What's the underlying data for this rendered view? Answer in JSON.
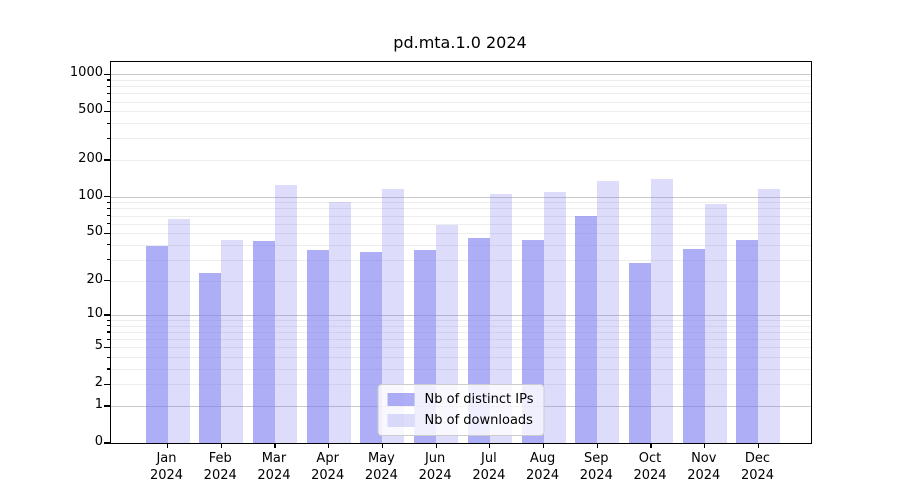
{
  "title": "pd.mta.1.0 2024",
  "chart_data": {
    "type": "bar",
    "title": "pd.mta.1.0 2024",
    "categories": [
      "Jan 2024",
      "Feb 2024",
      "Mar 2024",
      "Apr 2024",
      "May 2024",
      "Jun 2024",
      "Jul 2024",
      "Aug 2024",
      "Sep 2024",
      "Oct 2024",
      "Nov 2024",
      "Dec 2024"
    ],
    "series": [
      {
        "key": "distinct-ips",
        "name": "Nb of distinct IPs",
        "color": "rgba(120,120,240,0.6)",
        "values": [
          39,
          23,
          43,
          36,
          35,
          36,
          46,
          44,
          70,
          28,
          37,
          44
        ]
      },
      {
        "key": "downloads",
        "name": "Nb of downloads",
        "color": "rgba(120,120,240,0.25)",
        "values": [
          65,
          44,
          125,
          90,
          115,
          58,
          105,
          110,
          135,
          140,
          87,
          115
        ]
      }
    ],
    "xlabel": "",
    "ylabel": "",
    "yscale": "log1p",
    "ylim": [
      0,
      1259
    ],
    "yticks": [
      0,
      1,
      2,
      5,
      10,
      20,
      50,
      100,
      200,
      500,
      1000
    ],
    "grid": "both",
    "legend_position": "lower center",
    "bar_group_offset": "two bars per month, IPs left of tick, downloads right of tick"
  }
}
